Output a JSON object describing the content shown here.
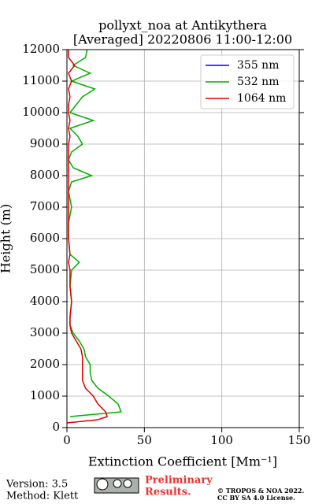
{
  "chart_data": {
    "type": "line",
    "title": "pollyxt_noa at Antikythera",
    "subtitle": "[Averaged] 20220806 11:00-12:00",
    "xlabel": "Extinction Coefficient [Mm⁻¹]",
    "ylabel": "Height (m)",
    "y": [
      150,
      250,
      350,
      500,
      750,
      1000,
      1250,
      1500,
      1750,
      2000,
      2250,
      2500,
      2750,
      3000,
      3250,
      3500,
      4000,
      4500,
      5000,
      5250,
      5500,
      6000,
      6500,
      7000,
      7500,
      7800,
      8000,
      8250,
      8500,
      8750,
      9000,
      9250,
      9500,
      9750,
      10000,
      10250,
      10500,
      10750,
      11000,
      11250,
      11500,
      11750,
      12000
    ],
    "series": [
      {
        "name": "355 nm",
        "color": "#0000ff",
        "values": [
          null,
          null,
          null,
          null,
          null,
          null,
          null,
          null,
          null,
          null,
          null,
          null,
          null,
          null,
          null,
          null,
          null,
          null,
          null,
          null,
          null,
          null,
          null,
          null,
          null,
          null,
          null,
          null,
          null,
          null,
          null,
          null,
          null,
          null,
          null,
          null,
          null,
          null,
          null,
          null,
          null,
          null,
          null
        ]
      },
      {
        "name": "532 nm",
        "color": "#00b000",
        "values": [
          null,
          null,
          2,
          35,
          33,
          27,
          20,
          16,
          15,
          15,
          12,
          11,
          8,
          4,
          2,
          2,
          3,
          2,
          3,
          8,
          2,
          1,
          1,
          3,
          1,
          3,
          16,
          4,
          1,
          3,
          10,
          7,
          2,
          17,
          2,
          6,
          10,
          18,
          3,
          15,
          4,
          12,
          13
        ]
      },
      {
        "name": "1064 nm",
        "color": "#e00000",
        "values": [
          0,
          20,
          26,
          25,
          20,
          17,
          12,
          10,
          10,
          10,
          10,
          9,
          6,
          3,
          2,
          2,
          3,
          2,
          2,
          1,
          2,
          1,
          1,
          1,
          1,
          1,
          1,
          1,
          1,
          1,
          1,
          2,
          1,
          2,
          1,
          1,
          2,
          1,
          3,
          1,
          5,
          1,
          1
        ]
      }
    ],
    "xlim": [
      0,
      150
    ],
    "xticks": [
      0,
      50,
      100,
      150
    ],
    "ylim": [
      0,
      12000
    ],
    "yticks": [
      0,
      1000,
      2000,
      3000,
      4000,
      5000,
      6000,
      7000,
      8000,
      9000,
      10000,
      11000,
      12000
    ],
    "grid": true,
    "legend": "upper-right"
  },
  "footer": {
    "version": "Version: 3.5",
    "method": "Method: Klett",
    "preliminary": [
      "Preliminary",
      "Results."
    ],
    "copyright": [
      "© TROPOS & NOA 2022.",
      "CC BY SA 4.0 License."
    ]
  }
}
